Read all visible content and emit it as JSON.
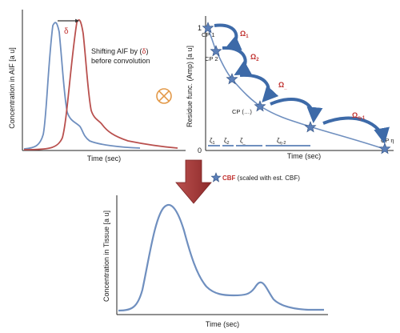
{
  "colors": {
    "blue_curve": "#6f8fbf",
    "red_curve": "#b9504e",
    "arrow_blue": "#3d6aa8",
    "star_fill": "#5b7fb8",
    "axis": "#222222",
    "red_text": "#c0302e",
    "down_arrow": "#a93a3a",
    "convolution_symbol": "#e39a4a"
  },
  "aif_panel": {
    "ylabel": "Concentration in AIF [a u]",
    "xlabel": "Time (sec)",
    "delta_symbol": "δ",
    "shift_text_line1_prefix": "Shifting AIF by (",
    "shift_text_line1_symbol": "δ",
    "shift_text_line1_suffix": ")",
    "shift_text_line2": "before convolution"
  },
  "convolution_icon": "circled-times-icon",
  "residue_panel": {
    "ylabel": "Residue func. (Amp) [a u]",
    "xlabel": "Time (sec)",
    "y_tick_top": "1",
    "y_tick_zero": "0",
    "control_points": [
      "CP 1",
      "CP 2",
      "CP  (…)",
      "CP η"
    ],
    "omega_labels": [
      {
        "base": "Ω",
        "sub": "1"
      },
      {
        "base": "Ω",
        "sub": "2"
      },
      {
        "base": "Ω",
        "sub": "_"
      },
      {
        "base": "Ω",
        "sub": "η-1"
      }
    ],
    "zeta_labels": [
      {
        "base": "ζ",
        "sub": "1"
      },
      {
        "base": "ζ",
        "sub": "2"
      },
      {
        "base": "ζ",
        "sub": "_"
      },
      {
        "base": "ζ",
        "sub": "η-2"
      }
    ]
  },
  "cbf_note": {
    "star_icon": "star-icon",
    "bold": "CBF",
    "rest": " (scaled with est. CBF)"
  },
  "tissue_panel": {
    "ylabel": "Concentration in Tissue [a u]",
    "xlabel": "Time (sec)"
  }
}
